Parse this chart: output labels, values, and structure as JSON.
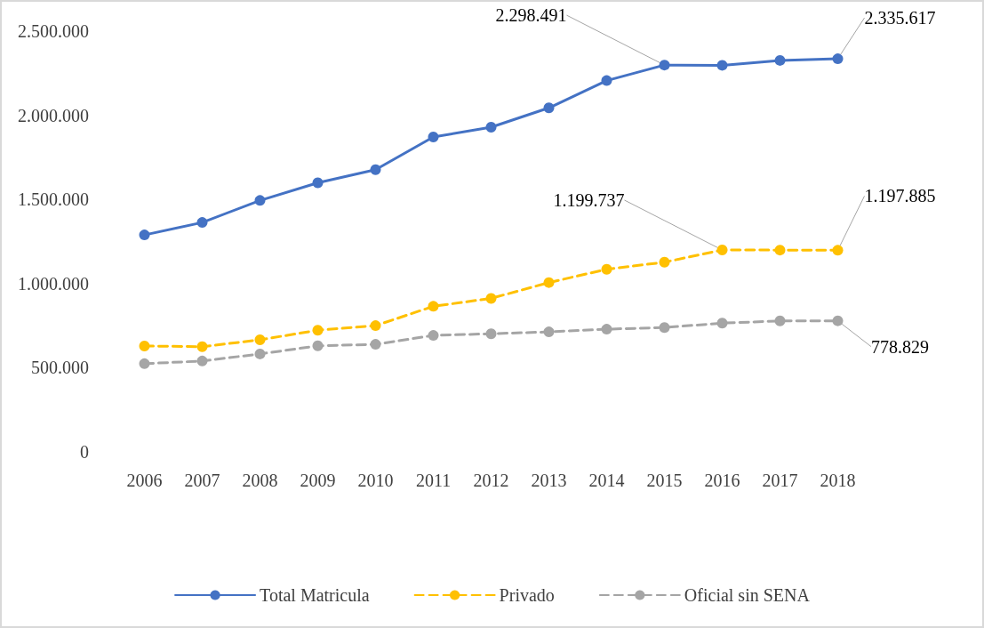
{
  "chart_data": {
    "type": "line",
    "categories": [
      "2006",
      "2007",
      "2008",
      "2009",
      "2010",
      "2011",
      "2012",
      "2013",
      "2014",
      "2015",
      "2016",
      "2017",
      "2018"
    ],
    "ylim": [
      0,
      2500000
    ],
    "yticks": [
      {
        "value": 0,
        "label": "0"
      },
      {
        "value": 500000,
        "label": "500.000"
      },
      {
        "value": 1000000,
        "label": "1.000.000"
      },
      {
        "value": 1500000,
        "label": "1.500.000"
      },
      {
        "value": 2000000,
        "label": "2.000.000"
      },
      {
        "value": 2500000,
        "label": "2.500.000"
      }
    ],
    "grid": false,
    "legend": "bottom",
    "marker": "circle",
    "series": [
      {
        "name": "Total Matricula",
        "color": "#4472c4",
        "line_style": "solid",
        "values": [
          1289000,
          1363000,
          1494000,
          1599000,
          1677000,
          1871000,
          1929000,
          2044000,
          2206000,
          2298491,
          2297000,
          2326000,
          2335617
        ],
        "value_labels": [
          null,
          null,
          null,
          null,
          null,
          null,
          null,
          null,
          null,
          "2.298.491",
          null,
          null,
          "2.335.617"
        ]
      },
      {
        "name": "Privado",
        "color": "#ffc000",
        "line_style": "dashed",
        "values": [
          629000,
          625000,
          666000,
          723000,
          750000,
          865000,
          912000,
          1006000,
          1085000,
          1127000,
          1199737,
          1199000,
          1197885
        ],
        "value_labels": [
          null,
          null,
          null,
          null,
          null,
          null,
          null,
          null,
          null,
          null,
          "1.199.737",
          null,
          "1.197.885"
        ]
      },
      {
        "name": "Oficial sin SENA",
        "color": "#a5a5a5",
        "line_style": "dashed",
        "values": [
          524000,
          540000,
          582000,
          630000,
          639000,
          692000,
          702000,
          713000,
          729000,
          739000,
          765000,
          778000,
          778829
        ],
        "value_labels": [
          null,
          null,
          null,
          null,
          null,
          null,
          null,
          null,
          null,
          null,
          null,
          null,
          "778.829"
        ]
      }
    ]
  }
}
